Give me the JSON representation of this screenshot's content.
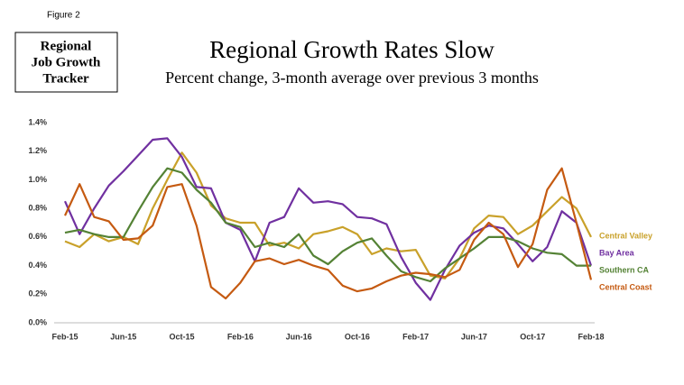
{
  "chart_data": {
    "type": "line",
    "figure_label": "Figure 2",
    "badge_lines": [
      "Regional",
      "Job Growth",
      "Tracker"
    ],
    "title": "Regional Growth Rates Slow",
    "subtitle": "Percent change, 3-month average over previous 3 months",
    "categories": [
      "Feb-15",
      null,
      null,
      null,
      "Jun-15",
      null,
      null,
      null,
      "Oct-15",
      null,
      null,
      null,
      "Feb-16",
      null,
      null,
      null,
      "Jun-16",
      null,
      null,
      null,
      "Oct-16",
      null,
      null,
      null,
      "Feb-17",
      null,
      null,
      null,
      "Jun-17",
      null,
      null,
      null,
      "Oct-17",
      null,
      null,
      null,
      "Feb-18"
    ],
    "ylim": [
      0,
      1.4
    ],
    "yticks": [
      {
        "value": 0,
        "label": "0.0%"
      },
      {
        "value": 0.2,
        "label": "0.2%"
      },
      {
        "value": 0.4,
        "label": "0.4%"
      },
      {
        "value": 0.6,
        "label": "0.6%"
      },
      {
        "value": 0.8,
        "label": "0.8%"
      },
      {
        "value": 1.0,
        "label": "1.0%"
      },
      {
        "value": 1.2,
        "label": "1.2%"
      },
      {
        "value": 1.4,
        "label": "1.4%"
      }
    ],
    "grid": false,
    "legend": "right",
    "series": [
      {
        "name": "Central Valley",
        "color": "#c9a12a",
        "values": [
          0.57,
          0.53,
          0.62,
          0.57,
          0.6,
          0.55,
          0.8,
          1.0,
          1.19,
          1.05,
          0.82,
          0.73,
          0.7,
          0.7,
          0.54,
          0.56,
          0.52,
          0.62,
          0.64,
          0.67,
          0.62,
          0.48,
          0.52,
          0.5,
          0.51,
          0.33,
          0.31,
          0.45,
          0.66,
          0.75,
          0.74,
          0.62,
          0.68,
          0.78,
          0.88,
          0.8,
          0.6
        ]
      },
      {
        "name": "Bay Area",
        "color": "#7030a0",
        "values": [
          0.85,
          0.62,
          0.8,
          0.96,
          1.06,
          1.17,
          1.28,
          1.29,
          1.16,
          0.95,
          0.94,
          0.7,
          0.65,
          0.43,
          0.7,
          0.74,
          0.94,
          0.84,
          0.85,
          0.83,
          0.74,
          0.73,
          0.69,
          0.46,
          0.28,
          0.16,
          0.37,
          0.54,
          0.63,
          0.68,
          0.66,
          0.55,
          0.43,
          0.53,
          0.78,
          0.7,
          0.4
        ]
      },
      {
        "name": "Southern CA",
        "color": "#548235",
        "values": [
          0.63,
          0.65,
          0.62,
          0.6,
          0.6,
          0.78,
          0.95,
          1.08,
          1.05,
          0.93,
          0.84,
          0.7,
          0.67,
          0.53,
          0.56,
          0.53,
          0.62,
          0.47,
          0.41,
          0.5,
          0.56,
          0.59,
          0.47,
          0.36,
          0.32,
          0.29,
          0.38,
          0.45,
          0.52,
          0.6,
          0.6,
          0.57,
          0.52,
          0.49,
          0.48,
          0.4,
          0.4
        ]
      },
      {
        "name": "Central Coast",
        "color": "#c55a11",
        "values": [
          0.75,
          0.97,
          0.74,
          0.71,
          0.58,
          0.59,
          0.68,
          0.95,
          0.97,
          0.68,
          0.25,
          0.17,
          0.28,
          0.43,
          0.45,
          0.41,
          0.44,
          0.4,
          0.37,
          0.26,
          0.22,
          0.24,
          0.29,
          0.33,
          0.35,
          0.34,
          0.32,
          0.37,
          0.58,
          0.7,
          0.62,
          0.39,
          0.55,
          0.93,
          1.08,
          0.7,
          0.3
        ]
      }
    ]
  }
}
